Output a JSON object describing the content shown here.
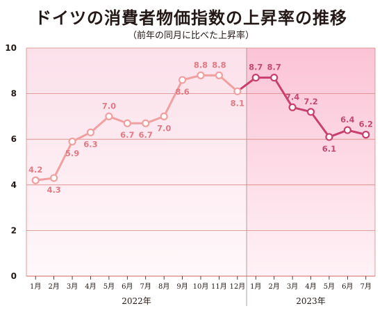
{
  "title": "ドイツの消費者物価指数の上昇率の推移",
  "subtitle": "（前年の同月に比べた上昇率）",
  "colors": {
    "line_2022": "#f0a0a0",
    "line_2023": "#c8406c",
    "label_2022": "#e07a84",
    "label_2023": "#c24a72",
    "grid": "#d9857f"
  },
  "chart_data": {
    "type": "line",
    "title": "ドイツの消費者物価指数の上昇率の推移",
    "subtitle": "（前年の同月に比べた上昇率）",
    "xlabel": "",
    "ylabel": "",
    "ylim": [
      0,
      10
    ],
    "yticks": [
      "0",
      "2",
      "4",
      "6",
      "8",
      "10"
    ],
    "grid": true,
    "categories": [
      "1月",
      "2月",
      "3月",
      "4月",
      "5月",
      "6月",
      "7月",
      "8月",
      "9月",
      "10月",
      "11月",
      "12月",
      "1月",
      "2月",
      "3月",
      "4月",
      "5月",
      "6月",
      "7月"
    ],
    "years": [
      {
        "label": "2022年",
        "start": 0,
        "end": 11
      },
      {
        "label": "2023年",
        "start": 12,
        "end": 18
      }
    ],
    "series": [
      {
        "values": [
          4.2,
          4.3,
          5.9,
          6.3,
          7.0,
          6.7,
          6.7,
          7.0,
          8.6,
          8.8,
          8.8,
          8.1,
          8.7,
          8.7,
          7.4,
          7.2,
          6.1,
          6.4,
          6.2
        ],
        "labels": [
          "4.2",
          "4.3",
          "5.9",
          "6.3",
          "7.0",
          "6.7",
          "6.7",
          "7.0",
          "8.6",
          "8.8",
          "8.8",
          "8.1",
          "8.7",
          "8.7",
          "7.4",
          "7.2",
          "6.1",
          "6.4",
          "6.2"
        ]
      }
    ]
  }
}
